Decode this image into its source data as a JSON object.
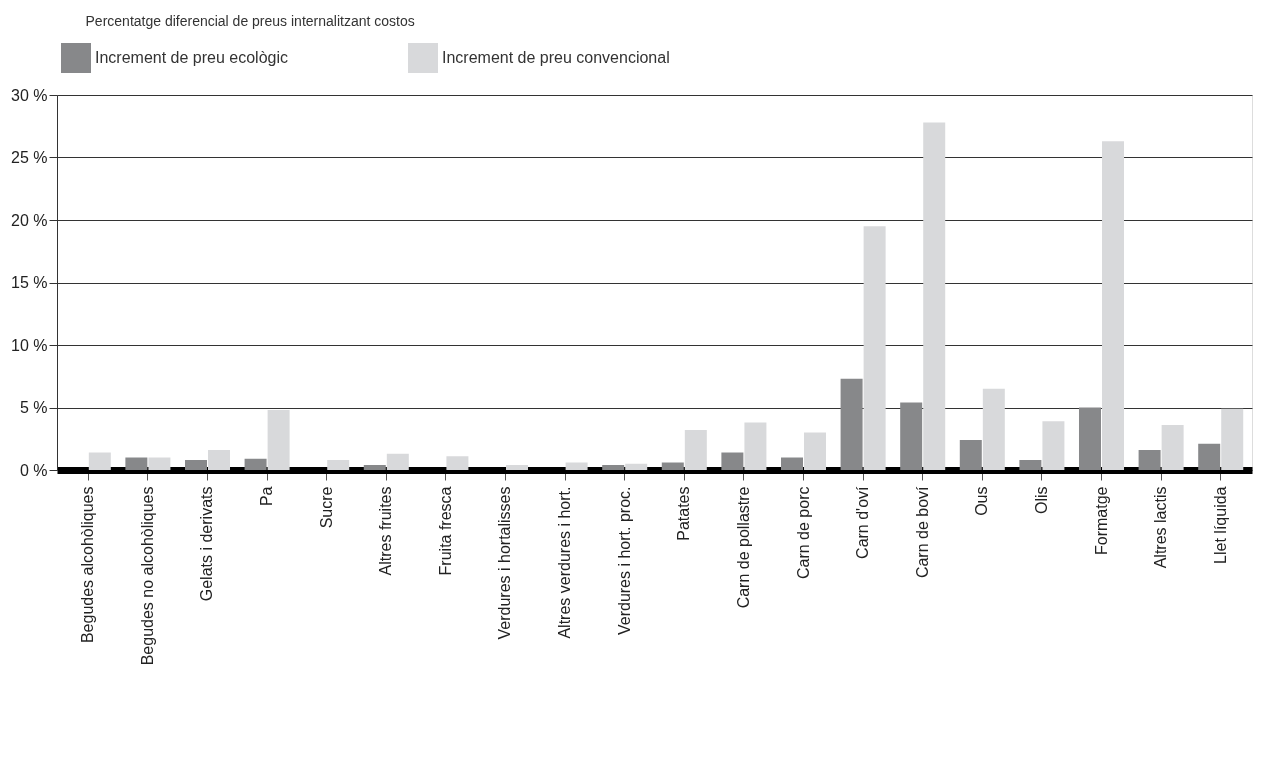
{
  "chart_data": {
    "type": "bar",
    "title": "Percentatge diferencial de preus internalitzant costos",
    "categories": [
      "Begudes alcohòliques",
      "Begudes no alcohòliques",
      "Gelats i derivats",
      "Pa",
      "Sucre",
      "Altres fruites",
      "Fruita fresca",
      "Verdures i hortalisses",
      "Altres verdures i hort.",
      "Verdures i hort. proc.",
      "Patates",
      "Carn de pollastre",
      "Carn de porc",
      "Carn d'oví",
      "Carn de boví",
      "Ous",
      "Olis",
      "Formatge",
      "Altres lactis",
      "Llet líquida"
    ],
    "series": [
      {
        "name": "Increment de preu ecològic",
        "color": "#87888a",
        "values": [
          0,
          1.0,
          0.8,
          0.9,
          0,
          0.4,
          0,
          0,
          0,
          0.4,
          0.6,
          1.4,
          1.0,
          7.3,
          5.4,
          2.4,
          0.8,
          5.0,
          1.6,
          2.1
        ]
      },
      {
        "name": "Increment de preu convencional",
        "color": "#d8d9db",
        "values": [
          1.4,
          1.0,
          1.6,
          4.8,
          0.8,
          1.3,
          1.1,
          0.4,
          0.6,
          0.5,
          3.2,
          3.8,
          3.0,
          19.5,
          27.8,
          6.5,
          3.9,
          26.3,
          3.6,
          4.9
        ]
      }
    ],
    "ylim": [
      0,
      30
    ],
    "yticks": [
      {
        "value": 0,
        "label": "0 %"
      },
      {
        "value": 5,
        "label": "5 %"
      },
      {
        "value": 10,
        "label": "10 %"
      },
      {
        "value": 15,
        "label": "15 %"
      },
      {
        "value": 20,
        "label": "20 %"
      },
      {
        "value": 25,
        "label": "25 %"
      },
      {
        "value": 30,
        "label": "30 %"
      }
    ],
    "grid": "y",
    "legend": "top"
  }
}
